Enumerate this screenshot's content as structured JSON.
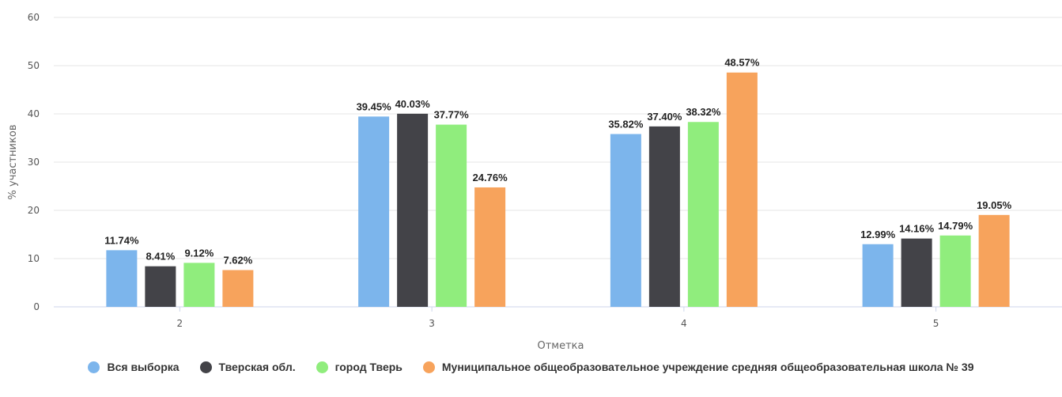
{
  "chart_data": {
    "type": "bar",
    "categories": [
      "2",
      "3",
      "4",
      "5"
    ],
    "xlabel": "Отметка",
    "ylabel": "% участников",
    "ylim": [
      0,
      60
    ],
    "yticks": [
      "0",
      "10",
      "20",
      "30",
      "40",
      "50",
      "60"
    ],
    "grid": true,
    "legend_position": "bottom",
    "series": [
      {
        "name": "Вся выборка",
        "color": "#7cb5ec",
        "values": [
          11.74,
          39.45,
          35.82,
          12.99
        ],
        "labels": [
          "11.74%",
          "39.45%",
          "35.82%",
          "12.99%"
        ]
      },
      {
        "name": "Тверская обл.",
        "color": "#434348",
        "values": [
          8.41,
          40.03,
          37.4,
          14.16
        ],
        "labels": [
          "8.41%",
          "40.03%",
          "37.40%",
          "14.16%"
        ]
      },
      {
        "name": "город Тверь",
        "color": "#90ed7d",
        "values": [
          9.12,
          37.77,
          38.32,
          14.79
        ],
        "labels": [
          "9.12%",
          "37.77%",
          "38.32%",
          "14.79%"
        ]
      },
      {
        "name": "Муниципальное общеобразовательное учреждение средняя общеобразовательная школа № 39",
        "color": "#f7a35c",
        "values": [
          7.62,
          24.76,
          48.57,
          19.05
        ],
        "labels": [
          "7.62%",
          "24.76%",
          "48.57%",
          "19.05%"
        ]
      }
    ]
  }
}
